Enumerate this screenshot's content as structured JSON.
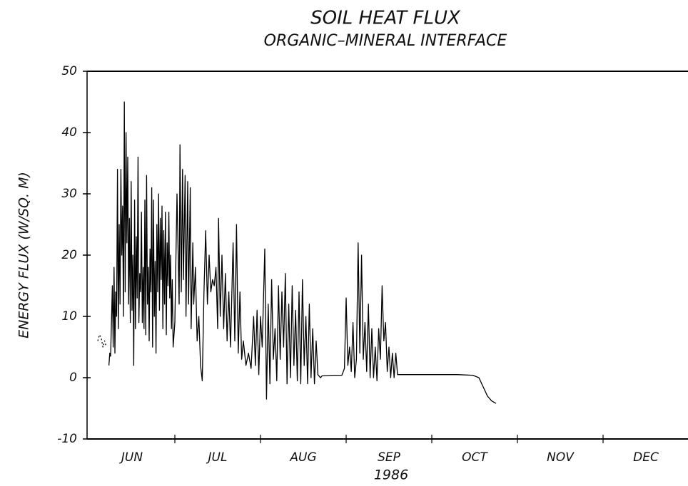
{
  "chart_data": {
    "type": "line",
    "title": "SOIL HEAT FLUX",
    "subtitle": "ORGANIC–MINERAL INTERFACE",
    "y_label": "ENERGY FLUX (W/SQ. M)",
    "x_label": "1986",
    "categories": [
      "JUN",
      "JUL",
      "AUG",
      "SEP",
      "OCT",
      "NOV",
      "DEC"
    ],
    "xlim": [
      0,
      7
    ],
    "ylim": [
      -10,
      50
    ],
    "yticks": [
      -10,
      0,
      10,
      20,
      30,
      40,
      50
    ],
    "grid": false,
    "series": [
      {
        "color": "#000000",
        "dashed": true,
        "x": [
          0.1,
          0.12,
          0.14,
          0.16,
          0.18,
          0.2
        ],
        "values": [
          6,
          7,
          6.5,
          5,
          6,
          5
        ]
      },
      {
        "color": "#000000",
        "dashed": false,
        "x": [
          0.23,
          0.24,
          0.25,
          0.27,
          0.28,
          0.29,
          0.3,
          0.31,
          0.32,
          0.33,
          0.34,
          0.35,
          0.36,
          0.37,
          0.38,
          0.39,
          0.4,
          0.41,
          0.42,
          0.43,
          0.44,
          0.45,
          0.46,
          0.47,
          0.48,
          0.49,
          0.5,
          0.51,
          0.52,
          0.53,
          0.54,
          0.55,
          0.56,
          0.57,
          0.58,
          0.59,
          0.6,
          0.61,
          0.62,
          0.63,
          0.64,
          0.65,
          0.66,
          0.67,
          0.68,
          0.69,
          0.7,
          0.71,
          0.72,
          0.73,
          0.74,
          0.75,
          0.76,
          0.77,
          0.78,
          0.79,
          0.8,
          0.81,
          0.82,
          0.83,
          0.84,
          0.85,
          0.86,
          0.87,
          0.88,
          0.89,
          0.9,
          0.91,
          0.92,
          0.93,
          0.94,
          0.95,
          0.96,
          0.97,
          0.98,
          1.0,
          1.025,
          1.05,
          1.06,
          1.075,
          1.09,
          1.1,
          1.12,
          1.13,
          1.15,
          1.16,
          1.18,
          1.19,
          1.21,
          1.22,
          1.24,
          1.26,
          1.28,
          1.3,
          1.32,
          1.34,
          1.36,
          1.38,
          1.4,
          1.42,
          1.44,
          1.46,
          1.48,
          1.5,
          1.51,
          1.53,
          1.55,
          1.57,
          1.59,
          1.61,
          1.63,
          1.65,
          1.68,
          1.7,
          1.72,
          1.74,
          1.76,
          1.78,
          1.8,
          1.83,
          1.86,
          1.89,
          1.92,
          1.94,
          1.96,
          1.98,
          2.0,
          2.02,
          2.05,
          2.07,
          2.09,
          2.11,
          2.13,
          2.15,
          2.17,
          2.19,
          2.21,
          2.23,
          2.25,
          2.27,
          2.29,
          2.31,
          2.33,
          2.35,
          2.37,
          2.39,
          2.41,
          2.43,
          2.45,
          2.47,
          2.49,
          2.51,
          2.53,
          2.55,
          2.57,
          2.59,
          2.61,
          2.63,
          2.65,
          2.67,
          2.7,
          2.72,
          2.85,
          2.95,
          2.98,
          3.0,
          3.02,
          3.04,
          3.06,
          3.08,
          3.1,
          3.12,
          3.14,
          3.16,
          3.18,
          3.2,
          3.22,
          3.24,
          3.26,
          3.28,
          3.3,
          3.32,
          3.34,
          3.36,
          3.38,
          3.4,
          3.42,
          3.44,
          3.46,
          3.48,
          3.5,
          3.52,
          3.54,
          3.56,
          3.58,
          3.6,
          3.65,
          4.0,
          4.3,
          4.48,
          4.55,
          4.6,
          4.65,
          4.7,
          4.75
        ],
        "values": [
          2,
          4,
          3.5,
          15,
          5,
          18,
          4,
          14,
          10,
          34,
          8,
          25,
          12,
          34,
          20,
          28,
          10,
          45,
          14,
          40,
          22,
          36,
          12,
          26,
          9,
          32,
          11,
          20,
          2,
          29,
          8,
          23,
          13,
          36,
          9,
          17,
          14,
          27,
          9,
          18,
          8,
          29,
          7,
          33,
          12,
          18,
          6,
          21,
          14,
          31,
          5,
          29,
          10,
          19,
          4,
          25,
          14,
          30,
          11,
          26,
          16,
          28,
          8,
          24,
          12,
          27,
          7,
          22,
          15,
          27,
          13,
          20,
          8,
          16,
          5,
          9,
          30,
          12,
          38,
          14,
          34,
          16,
          33,
          10,
          32,
          12,
          31,
          8,
          22,
          12,
          18,
          6,
          10,
          2,
          -0.5,
          14,
          24,
          12,
          20,
          14,
          16,
          15,
          18,
          8,
          26,
          10,
          20,
          8,
          17,
          6,
          14,
          5,
          22,
          6,
          25,
          4,
          14,
          3,
          6,
          2,
          4,
          1.5,
          10,
          2,
          11,
          0.5,
          10,
          5,
          21,
          -3.5,
          12,
          -1,
          16,
          3,
          8,
          -0.5,
          15,
          3,
          14,
          5,
          17,
          -1,
          12,
          0,
          15,
          2,
          11,
          -0.5,
          14,
          -1,
          16,
          2,
          10,
          -1,
          12,
          0,
          8,
          -1,
          6,
          0.5,
          0,
          0.3,
          0.4,
          0.4,
          1.5,
          13,
          2,
          5,
          1,
          9,
          0,
          3,
          22,
          4,
          20,
          3,
          9,
          1,
          12,
          0,
          8,
          0,
          5,
          -0.5,
          8,
          3,
          15,
          6,
          9,
          1,
          5,
          0,
          4,
          0,
          4,
          0.5,
          0.5,
          0.5,
          0.5,
          0.4,
          0,
          -1.5,
          -3,
          -3.8,
          -4.2
        ]
      }
    ]
  }
}
